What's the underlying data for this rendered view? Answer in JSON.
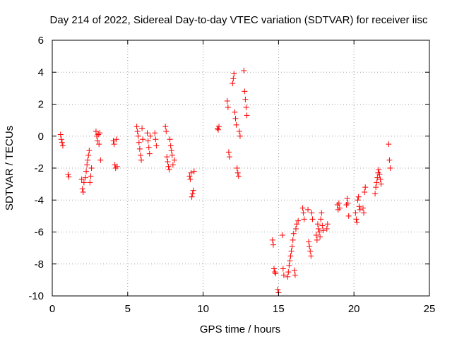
{
  "chart_data": {
    "type": "scatter",
    "title": "Day 214 of 2022, Sidereal Day-to-day VTEC variation (SDTVAR) for receiver iisc",
    "xlabel": "GPS time / hours",
    "ylabel": "SDTVAR / TECUs",
    "xlim": [
      0,
      25
    ],
    "ylim": [
      -10,
      6
    ],
    "xticks": [
      0,
      5,
      10,
      15,
      20,
      25
    ],
    "yticks": [
      -10,
      -8,
      -6,
      -4,
      -2,
      0,
      2,
      4,
      6
    ],
    "xtick_labels": [
      "0",
      "5",
      "10",
      "15",
      "20",
      "25"
    ],
    "ytick_labels": [
      "-10",
      "-8",
      "-6",
      "-4",
      "-2",
      "0",
      "2",
      "4",
      "6"
    ],
    "grid": true,
    "marker": "+",
    "color": "#ff0000",
    "series": [
      {
        "name": "SDTVAR",
        "points": [
          [
            0.55,
            0.1
          ],
          [
            0.6,
            -0.2
          ],
          [
            0.65,
            -0.4
          ],
          [
            0.7,
            -0.6
          ],
          [
            1.05,
            -2.4
          ],
          [
            1.1,
            -2.55
          ],
          [
            1.95,
            -2.7
          ],
          [
            2.0,
            -3.3
          ],
          [
            2.05,
            -3.5
          ],
          [
            2.1,
            -2.9
          ],
          [
            2.2,
            -2.6
          ],
          [
            2.25,
            -2.2
          ],
          [
            2.3,
            -1.8
          ],
          [
            2.35,
            -1.5
          ],
          [
            2.4,
            -1.2
          ],
          [
            2.45,
            -0.9
          ],
          [
            2.5,
            -2.9
          ],
          [
            2.55,
            -2.5
          ],
          [
            2.6,
            -2.0
          ],
          [
            2.9,
            0.3
          ],
          [
            2.95,
            0.0
          ],
          [
            3.0,
            -0.3
          ],
          [
            3.05,
            0.1
          ],
          [
            3.1,
            -0.5
          ],
          [
            3.15,
            0.2
          ],
          [
            3.2,
            -1.5
          ],
          [
            4.05,
            -0.3
          ],
          [
            4.1,
            -0.5
          ],
          [
            4.15,
            -1.8
          ],
          [
            4.2,
            -2.0
          ],
          [
            4.25,
            -0.2
          ],
          [
            4.3,
            -1.9
          ],
          [
            5.6,
            0.6
          ],
          [
            5.65,
            0.3
          ],
          [
            5.7,
            0.0
          ],
          [
            5.75,
            -0.4
          ],
          [
            5.8,
            -0.8
          ],
          [
            5.85,
            -1.2
          ],
          [
            5.9,
            -1.5
          ],
          [
            5.95,
            0.5
          ],
          [
            6.0,
            -0.2
          ],
          [
            6.3,
            0.2
          ],
          [
            6.35,
            -0.3
          ],
          [
            6.4,
            -0.7
          ],
          [
            6.45,
            -1.1
          ],
          [
            6.5,
            0.0
          ],
          [
            6.8,
            0.2
          ],
          [
            6.85,
            -0.2
          ],
          [
            6.9,
            -0.6
          ],
          [
            7.5,
            0.6
          ],
          [
            7.55,
            0.3
          ],
          [
            7.6,
            -1.3
          ],
          [
            7.65,
            -1.6
          ],
          [
            7.7,
            -1.9
          ],
          [
            7.75,
            -2.1
          ],
          [
            7.8,
            -0.2
          ],
          [
            7.85,
            -0.6
          ],
          [
            7.9,
            -0.9
          ],
          [
            7.95,
            -1.2
          ],
          [
            8.0,
            -1.8
          ],
          [
            8.1,
            -1.5
          ],
          [
            9.1,
            -2.5
          ],
          [
            9.15,
            -2.7
          ],
          [
            9.2,
            -2.3
          ],
          [
            9.25,
            -3.8
          ],
          [
            9.3,
            -3.6
          ],
          [
            9.35,
            -3.4
          ],
          [
            9.4,
            -2.2
          ],
          [
            10.95,
            0.5
          ],
          [
            11.0,
            0.4
          ],
          [
            11.05,
            0.6
          ],
          [
            11.6,
            2.2
          ],
          [
            11.65,
            1.8
          ],
          [
            11.7,
            -1.0
          ],
          [
            11.75,
            -1.3
          ],
          [
            11.95,
            3.3
          ],
          [
            12.0,
            3.6
          ],
          [
            12.05,
            3.9
          ],
          [
            12.1,
            1.5
          ],
          [
            12.15,
            1.1
          ],
          [
            12.2,
            0.7
          ],
          [
            12.25,
            -2.0
          ],
          [
            12.3,
            -2.3
          ],
          [
            12.35,
            -2.5
          ],
          [
            12.4,
            0.3
          ],
          [
            12.45,
            0.0
          ],
          [
            12.7,
            4.1
          ],
          [
            12.75,
            2.8
          ],
          [
            12.8,
            2.3
          ],
          [
            12.85,
            1.8
          ],
          [
            12.9,
            1.3
          ],
          [
            14.6,
            -6.5
          ],
          [
            14.65,
            -6.8
          ],
          [
            14.7,
            -8.3
          ],
          [
            14.75,
            -8.5
          ],
          [
            14.8,
            -8.6
          ],
          [
            14.95,
            -9.6
          ],
          [
            15.0,
            -9.8
          ],
          [
            15.25,
            -6.2
          ],
          [
            15.3,
            -8.3
          ],
          [
            15.35,
            -8.7
          ],
          [
            15.6,
            -8.8
          ],
          [
            15.65,
            -8.5
          ],
          [
            15.7,
            -8.1
          ],
          [
            15.75,
            -7.8
          ],
          [
            15.8,
            -7.5
          ],
          [
            15.85,
            -7.2
          ],
          [
            15.9,
            -6.9
          ],
          [
            15.95,
            -6.5
          ],
          [
            16.0,
            -6.1
          ],
          [
            16.05,
            -8.4
          ],
          [
            16.1,
            -8.7
          ],
          [
            16.15,
            -5.8
          ],
          [
            16.2,
            -5.5
          ],
          [
            16.3,
            -5.3
          ],
          [
            16.6,
            -4.5
          ],
          [
            16.65,
            -4.8
          ],
          [
            16.7,
            -5.2
          ],
          [
            16.95,
            -4.6
          ],
          [
            17.0,
            -6.6
          ],
          [
            17.05,
            -6.9
          ],
          [
            17.1,
            -7.2
          ],
          [
            17.15,
            -7.5
          ],
          [
            17.2,
            -4.8
          ],
          [
            17.25,
            -5.2
          ],
          [
            17.5,
            -6.2
          ],
          [
            17.55,
            -6.5
          ],
          [
            17.6,
            -5.5
          ],
          [
            17.65,
            -5.8
          ],
          [
            17.7,
            -6.0
          ],
          [
            17.75,
            -6.3
          ],
          [
            17.8,
            -5.2
          ],
          [
            17.85,
            -4.8
          ],
          [
            17.9,
            -5.6
          ],
          [
            17.95,
            -5.9
          ],
          [
            18.2,
            -5.8
          ],
          [
            18.25,
            -5.5
          ],
          [
            18.9,
            -4.3
          ],
          [
            18.95,
            -4.6
          ],
          [
            19.0,
            -4.2
          ],
          [
            19.05,
            -4.5
          ],
          [
            19.5,
            -4.3
          ],
          [
            19.55,
            -3.9
          ],
          [
            19.6,
            -4.2
          ],
          [
            19.65,
            -5.0
          ],
          [
            20.1,
            -4.8
          ],
          [
            20.15,
            -5.2
          ],
          [
            20.2,
            -5.4
          ],
          [
            20.25,
            -4.0
          ],
          [
            20.3,
            -3.8
          ],
          [
            20.35,
            -4.4
          ],
          [
            20.4,
            -4.6
          ],
          [
            20.6,
            -4.5
          ],
          [
            20.65,
            -4.8
          ],
          [
            20.7,
            -3.5
          ],
          [
            20.75,
            -3.2
          ],
          [
            21.4,
            -3.6
          ],
          [
            21.45,
            -3.2
          ],
          [
            21.5,
            -2.9
          ],
          [
            21.55,
            -2.6
          ],
          [
            21.6,
            -2.3
          ],
          [
            21.65,
            -2.1
          ],
          [
            21.7,
            -2.4
          ],
          [
            21.75,
            -2.7
          ],
          [
            21.8,
            -3.0
          ],
          [
            22.3,
            -0.5
          ],
          [
            22.35,
            -1.5
          ],
          [
            22.4,
            -2.0
          ]
        ]
      }
    ]
  }
}
